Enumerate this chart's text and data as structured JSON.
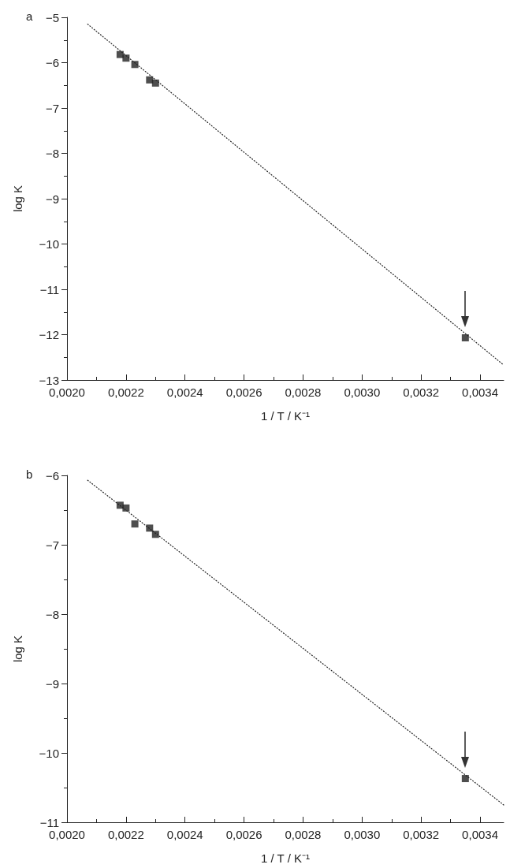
{
  "chart_data": [
    {
      "type": "scatter",
      "title": "a",
      "xlabel": "1 / T / K⁻¹",
      "ylabel": "log K",
      "xlim": [
        0.002,
        0.00348
      ],
      "ylim": [
        -13,
        -5
      ],
      "xticks": [
        {
          "value": 0.002,
          "label": "0,0020"
        },
        {
          "value": 0.0022,
          "label": "0,0022"
        },
        {
          "value": 0.0024,
          "label": "0,0024"
        },
        {
          "value": 0.0026,
          "label": "0,0026"
        },
        {
          "value": 0.0028,
          "label": "0,0028"
        },
        {
          "value": 0.003,
          "label": "0,0030"
        },
        {
          "value": 0.0032,
          "label": "0,0032"
        },
        {
          "value": 0.0034,
          "label": "0,0034"
        }
      ],
      "yticks": [
        {
          "value": -13,
          "label": "−13"
        },
        {
          "value": -12,
          "label": "−12"
        },
        {
          "value": -11,
          "label": "−11"
        },
        {
          "value": -10,
          "label": "−10"
        },
        {
          "value": -9,
          "label": "−9"
        },
        {
          "value": -8,
          "label": "−8"
        },
        {
          "value": -7,
          "label": "−7"
        },
        {
          "value": -6,
          "label": "−6"
        },
        {
          "value": -5,
          "label": "−5"
        }
      ],
      "grid": false,
      "marker": "square",
      "series": [
        {
          "type": "line",
          "color": "#222222",
          "line_style": "dotted",
          "marker": "none",
          "x": [
            0.00207,
            0.00348
          ],
          "values": [
            -5.15,
            -12.67
          ]
        },
        {
          "color": "#222222",
          "x": [
            0.00218,
            0.0022,
            0.00223,
            0.00228,
            0.0023,
            0.00335
          ],
          "values": [
            -5.82,
            -5.9,
            -6.04,
            -6.38,
            -6.45,
            -12.07
          ]
        }
      ]
    },
    {
      "type": "scatter",
      "title": "b",
      "xlabel": "1 / T / K⁻¹",
      "ylabel": "log K",
      "xlim": [
        0.002,
        0.00348
      ],
      "ylim": [
        -11,
        -6
      ],
      "xticks": [
        {
          "value": 0.002,
          "label": "0,0020"
        },
        {
          "value": 0.0022,
          "label": "0,0022"
        },
        {
          "value": 0.0024,
          "label": "0,0024"
        },
        {
          "value": 0.0026,
          "label": "0,0026"
        },
        {
          "value": 0.0028,
          "label": "0,0028"
        },
        {
          "value": 0.003,
          "label": "0,0030"
        },
        {
          "value": 0.0032,
          "label": "0,0032"
        },
        {
          "value": 0.0034,
          "label": "0,0034"
        }
      ],
      "yticks": [
        {
          "value": -11,
          "label": "−11"
        },
        {
          "value": -10,
          "label": "−10"
        },
        {
          "value": -9,
          "label": "−9"
        },
        {
          "value": -8,
          "label": "−8"
        },
        {
          "value": -7,
          "label": "−7"
        },
        {
          "value": -6,
          "label": "−6"
        }
      ],
      "grid": false,
      "marker": "square",
      "series": [
        {
          "type": "line",
          "color": "#222222",
          "line_style": "dotted",
          "marker": "none",
          "x": [
            0.00207,
            0.00348
          ],
          "values": [
            -6.07,
            -10.75
          ]
        },
        {
          "color": "#222222",
          "x": [
            0.00218,
            0.0022,
            0.00223,
            0.00228,
            0.0023,
            0.00335
          ],
          "values": [
            -6.43,
            -6.47,
            -6.7,
            -6.76,
            -6.85,
            -10.37
          ]
        }
      ]
    }
  ]
}
